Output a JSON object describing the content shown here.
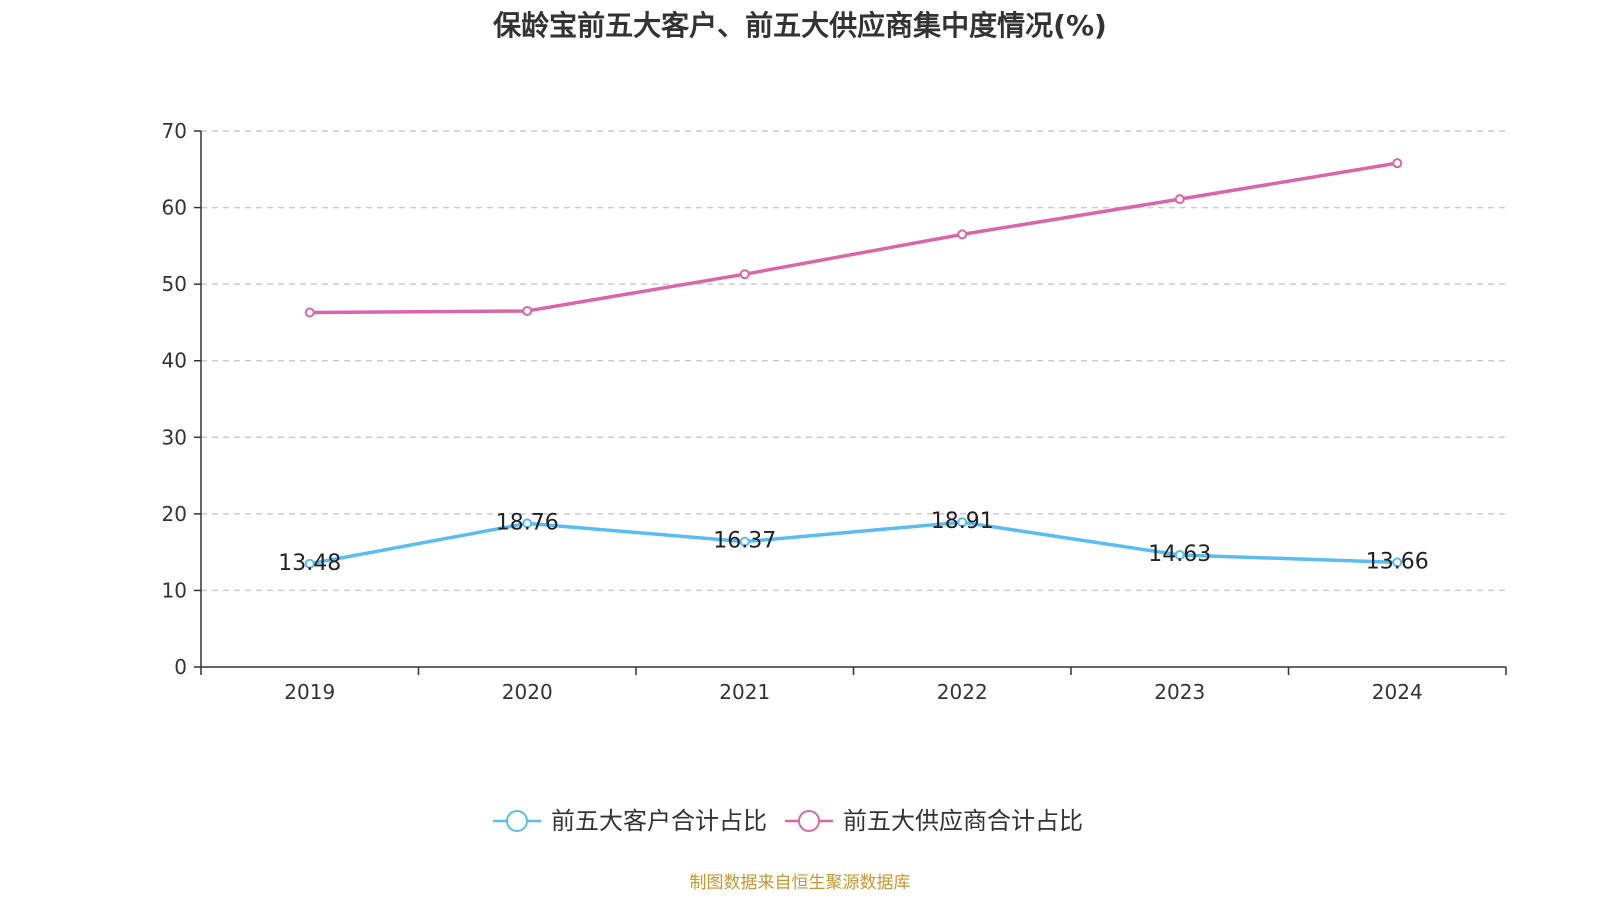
{
  "chart_data": {
    "type": "line",
    "title": "保龄宝前五大客户、前五大供应商集中度情况(%)",
    "categories": [
      "2019",
      "2020",
      "2021",
      "2022",
      "2023",
      "2024"
    ],
    "series": [
      {
        "name": "前五大客户合计占比",
        "color": "#5bbcf0",
        "values": [
          13.48,
          18.76,
          16.37,
          18.91,
          14.63,
          13.66
        ],
        "show_labels": true
      },
      {
        "name": "前五大供应商合计占比",
        "color": "#d966a9",
        "values": [
          46.3,
          46.5,
          51.3,
          56.5,
          61.1,
          65.8
        ],
        "show_labels": false
      }
    ],
    "ylim": [
      0,
      70
    ],
    "yticks": [
      0,
      10,
      20,
      30,
      40,
      50,
      60,
      70
    ],
    "grid": true,
    "legend_position": "bottom-center"
  },
  "source_note": "制图数据来自恒生聚源数据库"
}
